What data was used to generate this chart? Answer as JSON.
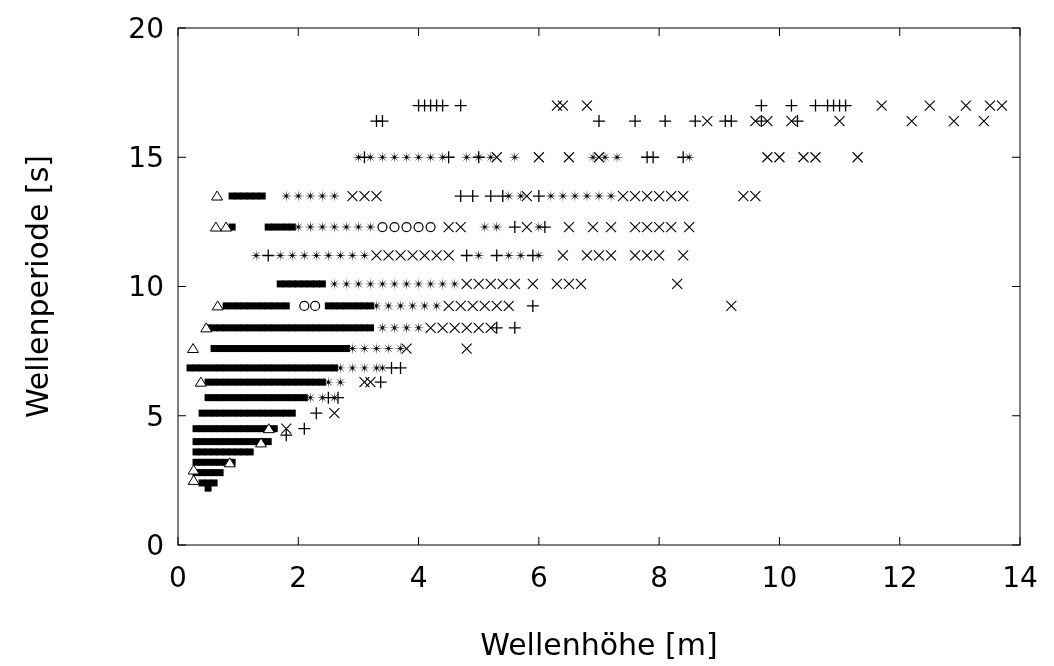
{
  "chart_data": {
    "type": "scatter",
    "xlabel": "Wellenhöhe [m]",
    "ylabel": "Wellenperiode [s]",
    "xlim": [
      0,
      14
    ],
    "xticks": [
      0,
      2,
      4,
      6,
      8,
      10,
      12,
      14
    ],
    "ylim": [
      0,
      20
    ],
    "yticks": [
      0,
      5,
      10,
      15,
      20
    ],
    "grid": false,
    "series": [
      {
        "color": "#000000",
        "marker": "square",
        "x": [
          0.9,
          1.0,
          1.1,
          1.2,
          1.3,
          1.4,
          0.9,
          1.5,
          1.6,
          1.7,
          1.8,
          1.9,
          1.7,
          1.8,
          1.9,
          2.0,
          2.1,
          2.2,
          2.3,
          2.4,
          0.8,
          0.9,
          1.0,
          1.1,
          1.2,
          1.3,
          1.4,
          1.5,
          1.6,
          1.7,
          1.8,
          2.5,
          2.6,
          2.7,
          2.8,
          2.9,
          3.0,
          3.1,
          3.2,
          0.5,
          0.6,
          0.7,
          0.8,
          0.9,
          1.0,
          1.1,
          1.2,
          1.3,
          1.4,
          1.5,
          1.6,
          1.7,
          1.8,
          1.9,
          2.0,
          2.1,
          2.2,
          2.3,
          2.4,
          2.5,
          2.6,
          2.7,
          2.8,
          2.9,
          3.0,
          3.1,
          3.2,
          0.6,
          0.7,
          0.8,
          0.9,
          1.0,
          1.1,
          1.2,
          1.3,
          1.4,
          1.5,
          1.6,
          1.7,
          1.8,
          1.9,
          2.0,
          2.1,
          2.2,
          2.3,
          2.4,
          2.5,
          2.6,
          2.7,
          2.8,
          0.2,
          0.3,
          0.4,
          0.5,
          0.6,
          0.7,
          0.8,
          0.9,
          1.0,
          1.1,
          1.2,
          1.3,
          1.4,
          1.5,
          1.6,
          1.7,
          1.8,
          1.9,
          2.0,
          2.1,
          2.2,
          2.3,
          2.4,
          2.5,
          2.6,
          0.5,
          0.6,
          0.7,
          0.8,
          0.9,
          1.0,
          1.1,
          1.2,
          1.3,
          1.4,
          1.5,
          1.6,
          1.7,
          1.8,
          1.9,
          2.0,
          2.1,
          2.2,
          2.3,
          2.4,
          0.5,
          0.6,
          0.7,
          0.8,
          0.9,
          1.0,
          1.1,
          1.2,
          1.3,
          1.4,
          1.5,
          1.6,
          1.7,
          1.8,
          1.9,
          2.0,
          2.1,
          0.4,
          0.5,
          0.6,
          0.7,
          0.8,
          0.9,
          1.0,
          1.1,
          1.2,
          1.3,
          1.4,
          1.5,
          1.6,
          1.7,
          1.8,
          1.9,
          0.3,
          0.4,
          0.5,
          0.6,
          0.7,
          0.8,
          0.9,
          1.0,
          1.1,
          1.2,
          1.3,
          1.4,
          1.5,
          1.6,
          0.3,
          0.4,
          0.5,
          0.6,
          0.7,
          0.8,
          0.9,
          1.0,
          1.1,
          1.2,
          1.3,
          1.4,
          1.5,
          0.3,
          0.4,
          0.5,
          0.6,
          0.7,
          0.8,
          0.9,
          1.0,
          1.1,
          1.2,
          0.3,
          0.4,
          0.5,
          0.6,
          0.7,
          0.8,
          0.9,
          0.3,
          0.4,
          0.5,
          0.6,
          0.7,
          0.4,
          0.5,
          0.6,
          0.5
        ],
        "values": [
          13.5,
          13.5,
          13.5,
          13.5,
          13.5,
          13.5,
          12.3,
          12.3,
          12.3,
          12.3,
          12.3,
          12.3,
          10.1,
          10.1,
          10.1,
          10.1,
          10.1,
          10.1,
          10.1,
          10.1,
          9.25,
          9.25,
          9.25,
          9.25,
          9.25,
          9.25,
          9.25,
          9.25,
          9.25,
          9.25,
          9.25,
          9.25,
          9.25,
          9.25,
          9.25,
          9.25,
          9.25,
          9.25,
          9.25,
          8.4,
          8.4,
          8.4,
          8.4,
          8.4,
          8.4,
          8.4,
          8.4,
          8.4,
          8.4,
          8.4,
          8.4,
          8.4,
          8.4,
          8.4,
          8.4,
          8.4,
          8.4,
          8.4,
          8.4,
          8.4,
          8.4,
          8.4,
          8.4,
          8.4,
          8.4,
          8.4,
          8.4,
          7.6,
          7.6,
          7.6,
          7.6,
          7.6,
          7.6,
          7.6,
          7.6,
          7.6,
          7.6,
          7.6,
          7.6,
          7.6,
          7.6,
          7.6,
          7.6,
          7.6,
          7.6,
          7.6,
          7.6,
          7.6,
          7.6,
          7.6,
          6.85,
          6.85,
          6.85,
          6.85,
          6.85,
          6.85,
          6.85,
          6.85,
          6.85,
          6.85,
          6.85,
          6.85,
          6.85,
          6.85,
          6.85,
          6.85,
          6.85,
          6.85,
          6.85,
          6.85,
          6.85,
          6.85,
          6.85,
          6.85,
          6.85,
          6.3,
          6.3,
          6.3,
          6.3,
          6.3,
          6.3,
          6.3,
          6.3,
          6.3,
          6.3,
          6.3,
          6.3,
          6.3,
          6.3,
          6.3,
          6.3,
          6.3,
          6.3,
          6.3,
          6.3,
          5.7,
          5.7,
          5.7,
          5.7,
          5.7,
          5.7,
          5.7,
          5.7,
          5.7,
          5.7,
          5.7,
          5.7,
          5.7,
          5.7,
          5.7,
          5.7,
          5.7,
          5.1,
          5.1,
          5.1,
          5.1,
          5.1,
          5.1,
          5.1,
          5.1,
          5.1,
          5.1,
          5.1,
          5.1,
          5.1,
          5.1,
          5.1,
          5.1,
          4.5,
          4.5,
          4.5,
          4.5,
          4.5,
          4.5,
          4.5,
          4.5,
          4.5,
          4.5,
          4.5,
          4.5,
          4.5,
          4.5,
          4.0,
          4.0,
          4.0,
          4.0,
          4.0,
          4.0,
          4.0,
          4.0,
          4.0,
          4.0,
          4.0,
          4.0,
          4.0,
          3.6,
          3.6,
          3.6,
          3.6,
          3.6,
          3.6,
          3.6,
          3.6,
          3.6,
          3.6,
          3.2,
          3.2,
          3.2,
          3.2,
          3.2,
          3.2,
          3.2,
          2.8,
          2.8,
          2.8,
          2.8,
          2.8,
          2.4,
          2.4,
          2.4,
          2.2
        ]
      },
      {
        "color": "#000000",
        "marker": "star",
        "x": [
          3.0,
          3.2,
          3.4,
          3.6,
          3.8,
          4.0,
          4.2,
          4.4,
          4.8,
          5.0,
          5.2,
          5.6,
          6.9,
          7.1,
          7.3,
          8.5,
          1.8,
          2.0,
          2.2,
          2.4,
          2.6,
          5.5,
          5.7,
          6.2,
          6.4,
          6.6,
          6.8,
          7.0,
          7.2,
          2.0,
          2.2,
          2.4,
          2.6,
          2.8,
          3.0,
          3.2,
          5.1,
          5.3,
          6.0,
          1.3,
          1.7,
          1.9,
          2.1,
          2.3,
          2.5,
          2.7,
          2.9,
          3.1,
          5.0,
          5.5,
          5.7,
          6.0,
          2.6,
          2.8,
          3.0,
          3.2,
          3.4,
          3.6,
          3.8,
          4.0,
          4.2,
          4.4,
          4.6,
          3.3,
          3.5,
          3.7,
          3.9,
          4.1,
          4.3,
          3.4,
          3.6,
          3.8,
          4.0,
          2.9,
          3.1,
          3.3,
          3.5,
          3.7,
          2.7,
          2.9,
          3.1,
          3.3,
          3.4,
          2.5,
          2.7,
          2.2,
          2.4,
          2.6
        ],
        "values": [
          15,
          15,
          15,
          15,
          15,
          15,
          15,
          15,
          15,
          15,
          15,
          15,
          15,
          15,
          15,
          15,
          13.5,
          13.5,
          13.5,
          13.5,
          13.5,
          13.5,
          13.5,
          13.5,
          13.5,
          13.5,
          13.5,
          13.5,
          13.5,
          12.3,
          12.3,
          12.3,
          12.3,
          12.3,
          12.3,
          12.3,
          12.3,
          12.3,
          12.3,
          11.2,
          11.2,
          11.2,
          11.2,
          11.2,
          11.2,
          11.2,
          11.2,
          11.2,
          11.2,
          11.2,
          11.2,
          11.2,
          10.1,
          10.1,
          10.1,
          10.1,
          10.1,
          10.1,
          10.1,
          10.1,
          10.1,
          10.1,
          10.1,
          9.25,
          9.25,
          9.25,
          9.25,
          9.25,
          9.25,
          8.4,
          8.4,
          8.4,
          8.4,
          7.6,
          7.6,
          7.6,
          7.6,
          7.6,
          6.85,
          6.85,
          6.85,
          6.85,
          6.85,
          6.3,
          6.3,
          5.7,
          5.7,
          5.7
        ]
      },
      {
        "color": "#000000",
        "marker": "cross",
        "x": [
          6.3,
          6.4,
          6.8,
          11.7,
          12.5,
          13.1,
          13.5,
          13.7,
          8.8,
          9.6,
          9.8,
          10.2,
          11.0,
          12.2,
          12.9,
          13.4,
          5.3,
          6.0,
          6.5,
          7.0,
          9.8,
          10.0,
          10.4,
          10.6,
          11.3,
          2.9,
          3.1,
          3.3,
          5.8,
          7.4,
          7.6,
          7.8,
          8.0,
          8.2,
          8.4,
          9.4,
          9.6,
          4.5,
          4.7,
          5.8,
          6.5,
          6.9,
          7.2,
          7.6,
          7.8,
          8.0,
          8.2,
          8.5,
          3.3,
          3.5,
          3.7,
          3.9,
          4.1,
          4.3,
          4.5,
          6.4,
          6.8,
          7.0,
          7.2,
          7.6,
          7.8,
          8.0,
          8.4,
          4.8,
          5.0,
          5.2,
          5.4,
          5.6,
          5.9,
          6.3,
          6.5,
          6.7,
          8.3,
          4.5,
          4.7,
          4.9,
          5.1,
          5.3,
          5.5,
          9.2,
          4.2,
          4.4,
          4.6,
          4.8,
          5.0,
          5.2,
          3.8,
          4.8,
          3.1,
          3.2,
          2.6,
          1.8
        ],
        "values": [
          17,
          17,
          17,
          17,
          17,
          17,
          17,
          17,
          16.4,
          16.4,
          16.4,
          16.4,
          16.4,
          16.4,
          16.4,
          16.4,
          15,
          15,
          15,
          15,
          15,
          15,
          15,
          15,
          15,
          13.5,
          13.5,
          13.5,
          13.5,
          13.5,
          13.5,
          13.5,
          13.5,
          13.5,
          13.5,
          13.5,
          13.5,
          12.3,
          12.3,
          12.3,
          12.3,
          12.3,
          12.3,
          12.3,
          12.3,
          12.3,
          12.3,
          12.3,
          11.2,
          11.2,
          11.2,
          11.2,
          11.2,
          11.2,
          11.2,
          11.2,
          11.2,
          11.2,
          11.2,
          11.2,
          11.2,
          11.2,
          11.2,
          10.1,
          10.1,
          10.1,
          10.1,
          10.1,
          10.1,
          10.1,
          10.1,
          10.1,
          10.1,
          9.25,
          9.25,
          9.25,
          9.25,
          9.25,
          9.25,
          9.25,
          8.4,
          8.4,
          8.4,
          8.4,
          8.4,
          8.4,
          7.6,
          7.6,
          6.3,
          6.3,
          5.1,
          4.5
        ]
      },
      {
        "color": "#000000",
        "marker": "plus",
        "x": [
          4.0,
          4.1,
          4.2,
          4.3,
          4.4,
          4.7,
          9.7,
          10.2,
          10.6,
          10.8,
          10.9,
          11.0,
          11.1,
          3.3,
          3.4,
          7.0,
          7.6,
          8.1,
          8.6,
          9.1,
          9.2,
          9.7,
          10.3,
          3.1,
          4.5,
          5.0,
          7.8,
          7.9,
          8.4,
          4.7,
          4.9,
          5.2,
          5.4,
          6.0,
          5.6,
          6.1,
          1.5,
          4.8,
          5.3,
          5.9,
          5.9,
          5.3,
          5.6,
          3.55,
          3.7,
          3.37,
          2.5,
          2.66,
          2.3,
          2.1,
          1.8
        ],
        "values": [
          17,
          17,
          17,
          17,
          17,
          17,
          17,
          17,
          17,
          17,
          17,
          17,
          17,
          16.4,
          16.4,
          16.4,
          16.4,
          16.4,
          16.4,
          16.4,
          16.4,
          16.4,
          16.4,
          15,
          15,
          15,
          15,
          15,
          15,
          13.5,
          13.5,
          13.5,
          13.5,
          13.5,
          12.3,
          12.3,
          11.2,
          11.2,
          11.2,
          11.2,
          9.25,
          8.4,
          8.4,
          6.85,
          6.85,
          6.3,
          5.7,
          5.7,
          5.1,
          4.5,
          4.25
        ]
      },
      {
        "color": "#000000",
        "marker": "triangle",
        "x": [
          0.65,
          0.63,
          0.8,
          0.66,
          0.47,
          0.25,
          0.38,
          1.51,
          1.38,
          0.86,
          0.26,
          0.26
        ],
        "values": [
          13.5,
          12.3,
          12.3,
          9.25,
          8.4,
          7.6,
          6.3,
          4.5,
          3.95,
          3.18,
          2.9,
          2.5
        ]
      },
      {
        "color": "#000000",
        "marker": "circle",
        "x": [
          2.1,
          2.28,
          3.4,
          3.6,
          3.8,
          4.0,
          4.2
        ],
        "values": [
          9.25,
          9.25,
          12.3,
          12.3,
          12.3,
          12.3,
          12.3
        ]
      }
    ]
  }
}
